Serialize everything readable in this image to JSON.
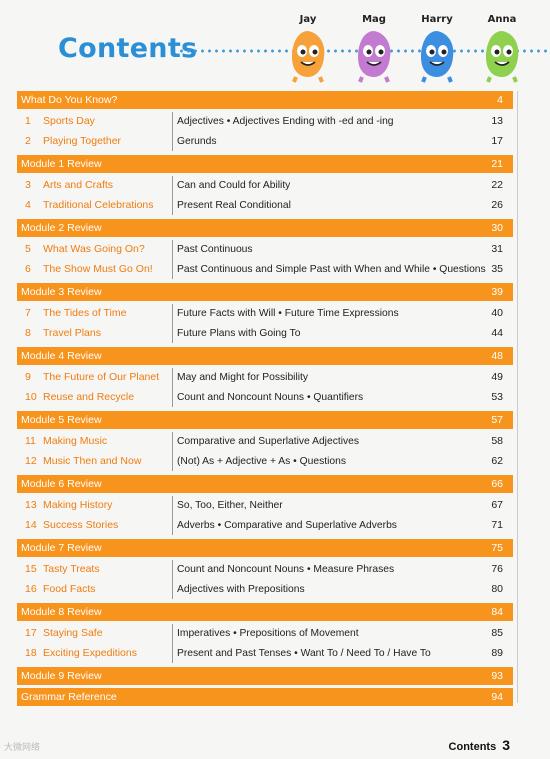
{
  "header": {
    "title": "Contents"
  },
  "characters": [
    {
      "name": "Jay",
      "color": "#f7a13a"
    },
    {
      "name": "Mag",
      "color": "#c27bd1"
    },
    {
      "name": "Harry",
      "color": "#3c8fe0"
    },
    {
      "name": "Anna",
      "color": "#8fd14f"
    }
  ],
  "sections": [
    {
      "label": "What Do You Know?",
      "page": "4",
      "units": [
        {
          "num": "1",
          "title": "Sports Day",
          "topic": "Adjectives • Adjectives Ending with -ed and -ing",
          "page": "13"
        },
        {
          "num": "2",
          "title": "Playing Together",
          "topic": "Gerunds",
          "page": "17"
        }
      ]
    },
    {
      "label": "Module 1 Review",
      "page": "21",
      "units": [
        {
          "num": "3",
          "title": "Arts and Crafts",
          "topic": "Can and Could for Ability",
          "page": "22"
        },
        {
          "num": "4",
          "title": "Traditional Celebrations",
          "topic": "Present Real Conditional",
          "page": "26"
        }
      ]
    },
    {
      "label": "Module 2 Review",
      "page": "30",
      "units": [
        {
          "num": "5",
          "title": "What Was Going On?",
          "topic": "Past Continuous",
          "page": "31"
        },
        {
          "num": "6",
          "title": "The Show Must Go On!",
          "topic": "Past Continuous and Simple Past with When and While • Questions",
          "page": "35"
        }
      ]
    },
    {
      "label": "Module 3 Review",
      "page": "39",
      "units": [
        {
          "num": "7",
          "title": "The Tides of Time",
          "topic": "Future Facts with Will • Future Time Expressions",
          "page": "40"
        },
        {
          "num": "8",
          "title": "Travel Plans",
          "topic": "Future Plans with Going To",
          "page": "44"
        }
      ]
    },
    {
      "label": "Module 4 Review",
      "page": "48",
      "units": [
        {
          "num": "9",
          "title": "The Future of Our Planet",
          "topic": "May and Might for Possibility",
          "page": "49"
        },
        {
          "num": "10",
          "title": "Reuse and Recycle",
          "topic": "Count and Noncount Nouns • Quantifiers",
          "page": "53"
        }
      ]
    },
    {
      "label": "Module 5 Review",
      "page": "57",
      "units": [
        {
          "num": "11",
          "title": "Making Music",
          "topic": "Comparative and Superlative Adjectives",
          "page": "58"
        },
        {
          "num": "12",
          "title": "Music Then and Now",
          "topic": "(Not) As + Adjective + As • Questions",
          "page": "62"
        }
      ]
    },
    {
      "label": "Module 6 Review",
      "page": "66",
      "units": [
        {
          "num": "13",
          "title": "Making History",
          "topic": "So, Too, Either, Neither",
          "page": "67"
        },
        {
          "num": "14",
          "title": "Success Stories",
          "topic": "Adverbs • Comparative and Superlative Adverbs",
          "page": "71"
        }
      ]
    },
    {
      "label": "Module 7 Review",
      "page": "75",
      "units": [
        {
          "num": "15",
          "title": "Tasty Treats",
          "topic": "Count and Noncount Nouns • Measure Phrases",
          "page": "76"
        },
        {
          "num": "16",
          "title": "Food Facts",
          "topic": "Adjectives with Prepositions",
          "page": "80"
        }
      ]
    },
    {
      "label": "Module 8 Review",
      "page": "84",
      "units": [
        {
          "num": "17",
          "title": "Staying Safe",
          "topic": "Imperatives • Prepositions of Movement",
          "page": "85"
        },
        {
          "num": "18",
          "title": "Exciting Expeditions",
          "topic": "Present and Past Tenses • Want To / Need To / Have To",
          "page": "89"
        }
      ]
    },
    {
      "label": "Module 9 Review",
      "page": "93",
      "units": []
    },
    {
      "label": "Grammar Reference",
      "page": "94",
      "units": []
    }
  ],
  "footer": {
    "label": "Contents",
    "page_number": "3"
  },
  "watermark": "大微网络"
}
